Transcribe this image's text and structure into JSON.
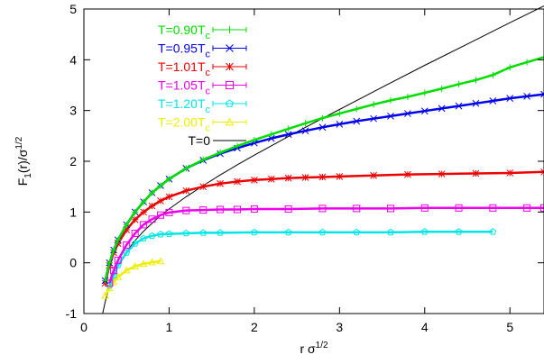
{
  "chart_data": {
    "type": "line",
    "xlabel": "r σ^{1/2}",
    "ylabel": "F_1(r)/σ^{1/2}",
    "xlim": [
      0,
      5.4
    ],
    "ylim": [
      -1,
      5
    ],
    "x_ticks": [
      0,
      1,
      2,
      3,
      4,
      5
    ],
    "y_ticks": [
      -1,
      0,
      1,
      2,
      3,
      4,
      5
    ],
    "grid": false,
    "legend_position": "top-left",
    "series": [
      {
        "name": "T=0.90T_c",
        "label_main": "T=0.90T",
        "label_sub": "c",
        "color": "#00dd00",
        "marker": "plus",
        "x": [
          0.25,
          0.3,
          0.35,
          0.4,
          0.5,
          0.6,
          0.7,
          0.8,
          0.9,
          1.0,
          1.2,
          1.4,
          1.6,
          1.8,
          2.0,
          2.2,
          2.4,
          2.6,
          2.8,
          3.0,
          3.2,
          3.4,
          3.6,
          3.8,
          4.0,
          4.2,
          4.4,
          4.6,
          4.8,
          5.0,
          5.2,
          5.4
        ],
        "y": [
          -0.35,
          0.0,
          0.25,
          0.45,
          0.75,
          1.0,
          1.2,
          1.38,
          1.52,
          1.65,
          1.86,
          2.03,
          2.17,
          2.3,
          2.42,
          2.53,
          2.64,
          2.75,
          2.85,
          2.94,
          3.03,
          3.12,
          3.2,
          3.27,
          3.35,
          3.43,
          3.52,
          3.6,
          3.7,
          3.85,
          3.95,
          4.05
        ]
      },
      {
        "name": "T=0.95T_c",
        "label_main": "T=0.95T",
        "label_sub": "c",
        "color": "#0000ee",
        "marker": "cross",
        "x": [
          0.25,
          0.3,
          0.35,
          0.4,
          0.5,
          0.6,
          0.7,
          0.8,
          0.9,
          1.0,
          1.2,
          1.4,
          1.6,
          1.8,
          2.0,
          2.2,
          2.4,
          2.6,
          2.8,
          3.0,
          3.2,
          3.4,
          3.6,
          3.8,
          4.0,
          4.2,
          4.4,
          4.6,
          4.8,
          5.0,
          5.2,
          5.4
        ],
        "y": [
          -0.35,
          0.0,
          0.25,
          0.45,
          0.75,
          1.0,
          1.2,
          1.38,
          1.52,
          1.65,
          1.86,
          2.02,
          2.15,
          2.26,
          2.36,
          2.45,
          2.53,
          2.6,
          2.67,
          2.73,
          2.79,
          2.84,
          2.89,
          2.94,
          2.99,
          3.04,
          3.09,
          3.14,
          3.19,
          3.24,
          3.28,
          3.32
        ]
      },
      {
        "name": "T=1.01T_c",
        "label_main": "T=1.01T",
        "label_sub": "c",
        "color": "#ee0000",
        "marker": "star",
        "x": [
          0.25,
          0.3,
          0.35,
          0.4,
          0.5,
          0.6,
          0.7,
          0.8,
          0.9,
          1.0,
          1.2,
          1.4,
          1.6,
          1.8,
          2.0,
          2.2,
          2.4,
          2.6,
          2.8,
          3.0,
          3.4,
          3.8,
          4.2,
          4.6,
          5.0,
          5.4
        ],
        "y": [
          -0.4,
          -0.05,
          0.2,
          0.38,
          0.65,
          0.85,
          1.0,
          1.12,
          1.22,
          1.3,
          1.42,
          1.5,
          1.56,
          1.6,
          1.63,
          1.65,
          1.67,
          1.68,
          1.69,
          1.7,
          1.72,
          1.74,
          1.75,
          1.76,
          1.77,
          1.79
        ]
      },
      {
        "name": "T=1.05T_c",
        "label_main": "T=1.05T",
        "label_sub": "c",
        "color": "#ee00ee",
        "marker": "square",
        "x": [
          0.3,
          0.35,
          0.4,
          0.5,
          0.6,
          0.7,
          0.8,
          0.9,
          1.0,
          1.2,
          1.4,
          1.6,
          1.8,
          2.0,
          2.4,
          2.8,
          3.2,
          3.6,
          4.0,
          4.4,
          4.8,
          5.2,
          5.4
        ],
        "y": [
          -0.4,
          -0.15,
          0.05,
          0.35,
          0.58,
          0.75,
          0.86,
          0.94,
          0.99,
          1.03,
          1.04,
          1.05,
          1.05,
          1.06,
          1.06,
          1.07,
          1.07,
          1.07,
          1.08,
          1.08,
          1.08,
          1.08,
          1.08
        ]
      },
      {
        "name": "T=1.20T_c",
        "label_main": "T=1.20T",
        "label_sub": "c",
        "color": "#00e5e5",
        "marker": "pentagon",
        "x": [
          0.3,
          0.35,
          0.4,
          0.5,
          0.6,
          0.7,
          0.8,
          0.9,
          1.0,
          1.2,
          1.4,
          1.6,
          2.0,
          2.4,
          2.8,
          3.2,
          3.6,
          4.0,
          4.4,
          4.8
        ],
        "y": [
          -0.45,
          -0.25,
          -0.05,
          0.2,
          0.38,
          0.48,
          0.53,
          0.56,
          0.57,
          0.58,
          0.59,
          0.59,
          0.6,
          0.6,
          0.6,
          0.6,
          0.6,
          0.61,
          0.61,
          0.61
        ]
      },
      {
        "name": "T=2.00T_c",
        "label_main": "T=2.00T",
        "label_sub": "c",
        "color": "#eeee00",
        "marker": "triangle",
        "x": [
          0.25,
          0.3,
          0.35,
          0.4,
          0.5,
          0.6,
          0.7,
          0.8,
          0.9
        ],
        "y": [
          -0.65,
          -0.5,
          -0.38,
          -0.28,
          -0.15,
          -0.07,
          -0.02,
          0.01,
          0.03
        ]
      },
      {
        "name": "T=0",
        "label_main": "T=0",
        "label_sub": "",
        "color": "#000000",
        "marker": "none",
        "x": [
          0.22,
          0.25,
          0.3,
          0.35,
          0.4,
          0.5,
          0.6,
          0.7,
          0.8,
          0.9,
          1.0,
          1.2,
          1.4,
          1.6,
          1.8,
          2.0,
          2.5,
          3.0,
          3.5,
          4.0,
          4.5,
          5.0,
          5.4
        ],
        "y": [
          -1.0,
          -0.77,
          -0.47,
          -0.24,
          -0.06,
          0.22,
          0.44,
          0.62,
          0.78,
          0.93,
          1.06,
          1.3,
          1.52,
          1.73,
          1.93,
          2.12,
          2.58,
          3.02,
          3.46,
          3.89,
          4.31,
          4.73,
          5.06
        ]
      }
    ]
  }
}
